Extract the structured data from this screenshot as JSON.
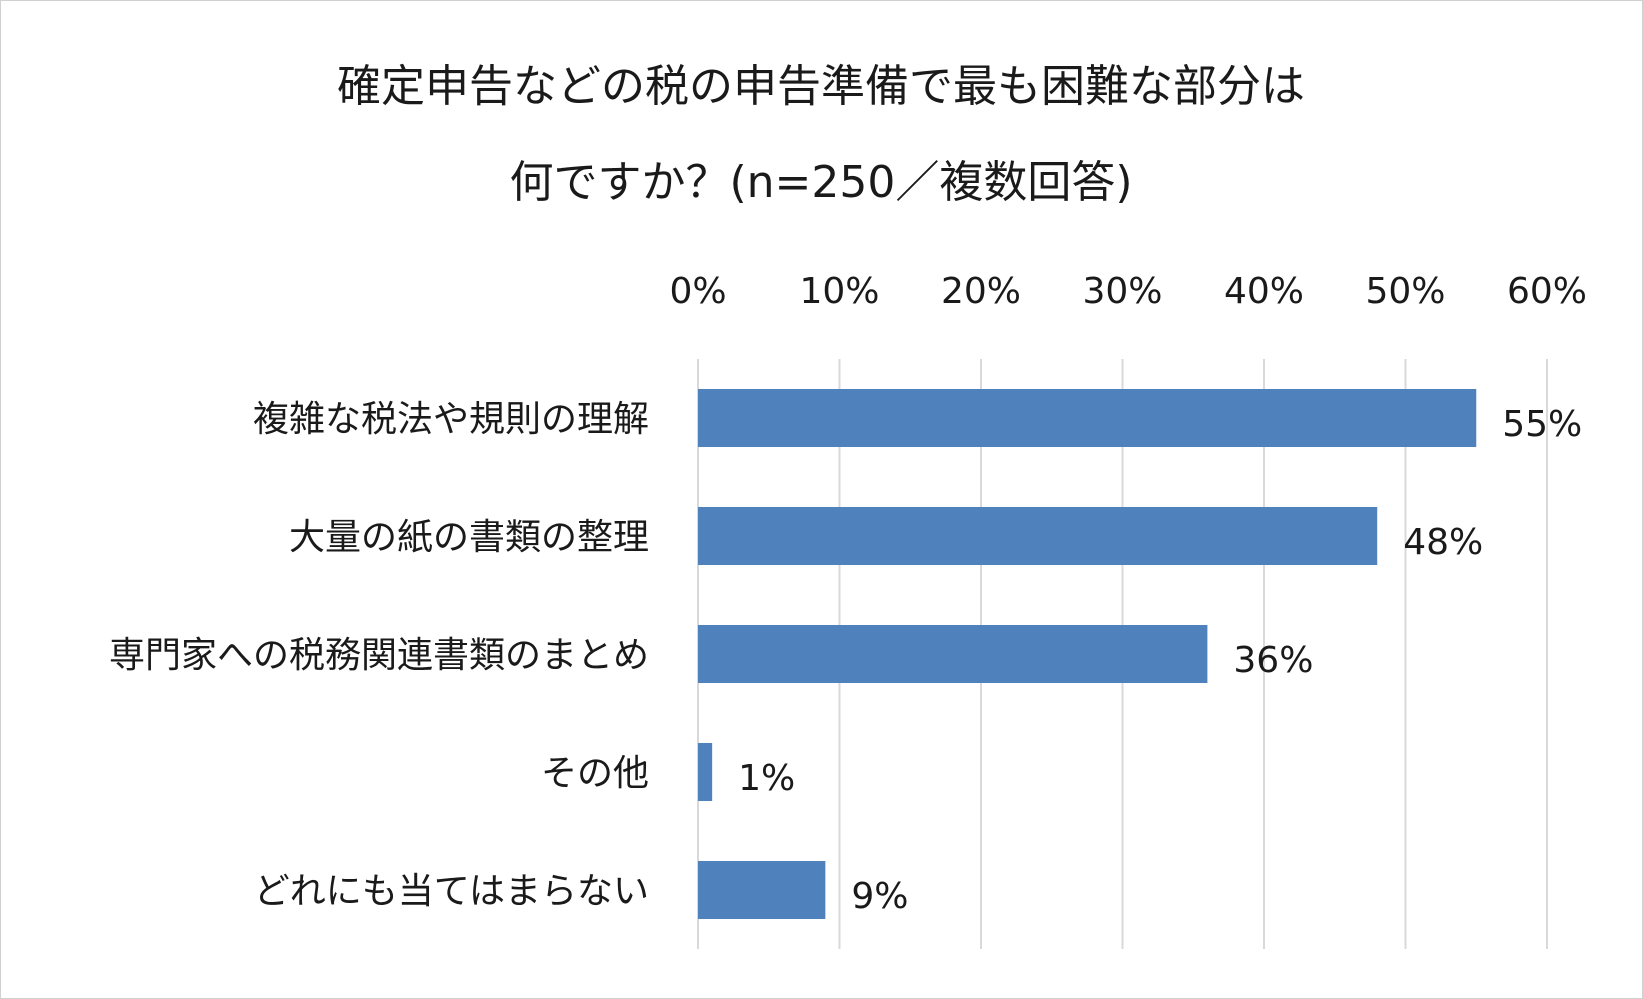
{
  "chart_data": {
    "type": "bar",
    "orientation": "horizontal",
    "title_lines": [
      "確定申告などの税の申告準備で最も困難な部分は",
      "何ですか？(n=250／複数回答)"
    ],
    "categories": [
      "複雑な税法や規則の理解",
      "大量の紙の書類の整理",
      "専門家への税務関連書類のまとめ",
      "その他",
      "どれにも当てはまらない"
    ],
    "values": [
      55,
      48,
      36,
      1,
      9
    ],
    "value_labels": [
      "55%",
      "48%",
      "36%",
      "1%",
      "9%"
    ],
    "x_ticks": [
      "0%",
      "10%",
      "20%",
      "30%",
      "40%",
      "50%",
      "60%"
    ],
    "xlim": [
      0,
      60
    ],
    "x_axis_position": "top",
    "grid": true,
    "legend": "none",
    "bar_color": "#4f81bd"
  }
}
